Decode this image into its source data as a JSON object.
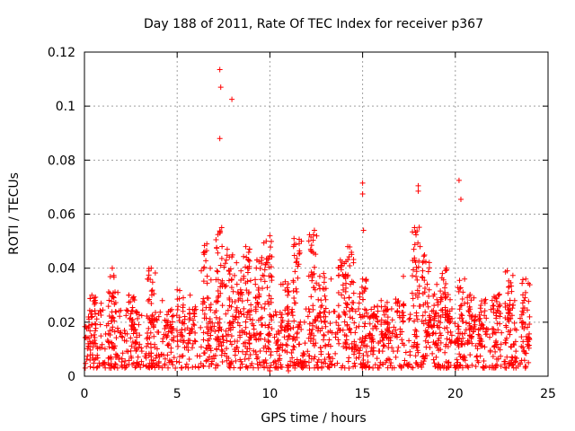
{
  "chart_data": {
    "type": "scatter",
    "title": "Day 188 of 2011, Rate Of TEC Index for receiver p367",
    "xlabel": "GPS time / hours",
    "ylabel": "ROTI / TECUs",
    "xlim": [
      0,
      25
    ],
    "ylim": [
      0,
      0.12
    ],
    "xticks": [
      0,
      5,
      10,
      15,
      20,
      25
    ],
    "xtick_labels": [
      "0",
      "5",
      "10",
      "15",
      "20",
      "25"
    ],
    "yticks": [
      0,
      0.02,
      0.04,
      0.06,
      0.08,
      0.1,
      0.12
    ],
    "ytick_labels": [
      "0",
      "0.02",
      "0.04",
      "0.06",
      "0.08",
      "0.1",
      "0.12"
    ],
    "grid": true,
    "marker": "+",
    "color": "#ff0000",
    "background_band": {
      "x_start": 0.0,
      "x_end": 24.0,
      "base_min": 0.003,
      "base_max": 0.025,
      "density_per_hour": 45
    },
    "series": [
      {
        "name": "ROTI",
        "points": [
          [
            7.3,
            0.1135
          ],
          [
            7.35,
            0.107
          ],
          [
            7.3,
            0.088
          ],
          [
            7.95,
            0.1025
          ],
          [
            15.0,
            0.0715
          ],
          [
            15.0,
            0.0675
          ],
          [
            15.05,
            0.054
          ],
          [
            18.0,
            0.0705
          ],
          [
            18.0,
            0.0685
          ],
          [
            20.2,
            0.0725
          ],
          [
            20.3,
            0.0655
          ],
          [
            1.5,
            0.04
          ],
          [
            3.6,
            0.04
          ],
          [
            6.6,
            0.049
          ],
          [
            7.4,
            0.055
          ],
          [
            7.3,
            0.053
          ],
          [
            7.7,
            0.047
          ],
          [
            8.7,
            0.048
          ],
          [
            8.9,
            0.047
          ],
          [
            10.0,
            0.052
          ],
          [
            9.8,
            0.05
          ],
          [
            11.3,
            0.051
          ],
          [
            11.7,
            0.05
          ],
          [
            12.4,
            0.054
          ],
          [
            12.2,
            0.047
          ],
          [
            13.8,
            0.043
          ],
          [
            14.2,
            0.048
          ],
          [
            15.0,
            0.036
          ],
          [
            17.8,
            0.055
          ],
          [
            18.1,
            0.048
          ],
          [
            19.5,
            0.04
          ],
          [
            20.5,
            0.036
          ],
          [
            22.8,
            0.039
          ],
          [
            23.8,
            0.036
          ],
          [
            0.4,
            0.03
          ],
          [
            0.9,
            0.027
          ],
          [
            1.8,
            0.031
          ],
          [
            2.4,
            0.03
          ],
          [
            3.4,
            0.036
          ],
          [
            4.2,
            0.028
          ],
          [
            5.0,
            0.032
          ],
          [
            5.7,
            0.03
          ],
          [
            6.3,
            0.039
          ],
          [
            8.2,
            0.042
          ],
          [
            9.3,
            0.043
          ],
          [
            10.6,
            0.034
          ],
          [
            12.9,
            0.038
          ],
          [
            13.3,
            0.036
          ],
          [
            16.0,
            0.028
          ],
          [
            16.8,
            0.027
          ],
          [
            17.2,
            0.037
          ],
          [
            19.0,
            0.034
          ],
          [
            21.0,
            0.029
          ],
          [
            21.6,
            0.027
          ],
          [
            22.3,
            0.03
          ],
          [
            23.2,
            0.028
          ],
          [
            0.2,
            0.012
          ],
          [
            0.3,
            0.006
          ],
          [
            1.0,
            0.005
          ],
          [
            2.0,
            0.004
          ],
          [
            4.9,
            0.003
          ],
          [
            10.0,
            0.002
          ],
          [
            11.0,
            0.002
          ],
          [
            12.6,
            0.003
          ],
          [
            13.5,
            0.004
          ],
          [
            16.5,
            0.004
          ],
          [
            17.0,
            0.004
          ],
          [
            22.0,
            0.004
          ],
          [
            23.5,
            0.005
          ]
        ],
        "peaks": [
          [
            0.4,
            0.03
          ],
          [
            1.5,
            0.04
          ],
          [
            2.6,
            0.031
          ],
          [
            3.6,
            0.04
          ],
          [
            4.6,
            0.025
          ],
          [
            5.2,
            0.032
          ],
          [
            5.8,
            0.026
          ],
          [
            6.6,
            0.049
          ],
          [
            7.3,
            0.055
          ],
          [
            7.8,
            0.046
          ],
          [
            8.3,
            0.04
          ],
          [
            8.8,
            0.048
          ],
          [
            9.4,
            0.044
          ],
          [
            9.9,
            0.052
          ],
          [
            10.8,
            0.035
          ],
          [
            11.4,
            0.051
          ],
          [
            12.3,
            0.054
          ],
          [
            12.8,
            0.038
          ],
          [
            13.9,
            0.043
          ],
          [
            14.3,
            0.048
          ],
          [
            15.0,
            0.036
          ],
          [
            15.6,
            0.026
          ],
          [
            16.2,
            0.028
          ],
          [
            17.0,
            0.03
          ],
          [
            17.9,
            0.056
          ],
          [
            18.4,
            0.045
          ],
          [
            19.0,
            0.034
          ],
          [
            19.5,
            0.04
          ],
          [
            20.3,
            0.036
          ],
          [
            20.8,
            0.031
          ],
          [
            21.5,
            0.029
          ],
          [
            22.2,
            0.031
          ],
          [
            22.9,
            0.039
          ],
          [
            23.8,
            0.036
          ]
        ]
      }
    ]
  }
}
